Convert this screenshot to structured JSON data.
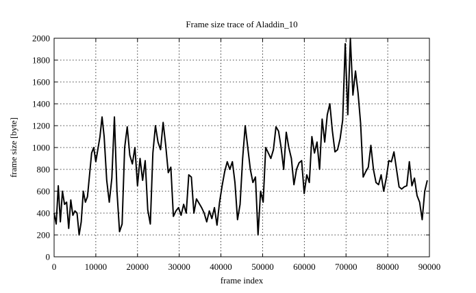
{
  "chart_data": {
    "type": "line",
    "title": "Frame size trace of Aladdin_10",
    "x_label": "frame index",
    "y_label": "frame size [byte]",
    "color": "#000000",
    "grid": true,
    "xlim": [
      0,
      90000
    ],
    "xticks": [
      0,
      10000,
      20000,
      30000,
      40000,
      50000,
      60000,
      70000,
      80000,
      90000
    ],
    "ylim": [
      0,
      2000
    ],
    "yticks": [
      0,
      200,
      400,
      600,
      800,
      1000,
      1200,
      1400,
      1600,
      1800,
      2000
    ],
    "x": [
      0,
      500,
      1000,
      1500,
      2000,
      2500,
      3000,
      3500,
      4000,
      4500,
      5000,
      5500,
      6000,
      6500,
      7000,
      7500,
      8000,
      9000,
      9500,
      10000,
      11000,
      11500,
      12000,
      12615,
      13230,
      13845,
      14460,
      15075,
      15690,
      16305,
      16920,
      17535,
      18150,
      18765,
      19380,
      19995,
      20610,
      21225,
      21840,
      22455,
      23070,
      23685,
      24300,
      24915,
      25530,
      26145,
      26760,
      27375,
      27990,
      28605,
      29220,
      29835,
      30450,
      31065,
      31680,
      32295,
      32910,
      33525,
      34140,
      34755,
      35370,
      35985,
      36600,
      37215,
      37830,
      38445,
      39060,
      39675,
      40290,
      40905,
      41520,
      42135,
      42750,
      43365,
      43980,
      44595,
      45210,
      45825,
      46440,
      47055,
      47670,
      48285,
      48900,
      49515,
      50130,
      50745,
      51360,
      51975,
      52590,
      53205,
      53820,
      54435,
      55050,
      55665,
      56280,
      56895,
      57510,
      58125,
      58740,
      59355,
      59970,
      60585,
      61200,
      61815,
      62430,
      63045,
      63660,
      64275,
      64890,
      65505,
      66120,
      66735,
      67350,
      67965,
      68580,
      69195,
      69810,
      70425,
      71040,
      71655,
      72270,
      72885,
      73500,
      74115,
      74730,
      75345,
      75960,
      76575,
      77190,
      77805,
      78420,
      79035,
      79650,
      80265,
      80880,
      81495,
      82110,
      82725,
      83340,
      83955,
      84570,
      85185,
      85800,
      86415,
      87030,
      87645,
      88260,
      88875,
      89490
    ],
    "values": [
      400,
      300,
      650,
      320,
      600,
      480,
      500,
      260,
      520,
      380,
      420,
      400,
      200,
      320,
      600,
      500,
      550,
      950,
      1000,
      870,
      1100,
      1280,
      1100,
      700,
      500,
      720,
      1280,
      600,
      230,
      300,
      1000,
      1190,
      930,
      850,
      1000,
      650,
      900,
      700,
      880,
      430,
      300,
      950,
      1200,
      1050,
      980,
      1230,
      1020,
      770,
      820,
      370,
      420,
      450,
      380,
      480,
      400,
      750,
      730,
      400,
      530,
      490,
      450,
      400,
      320,
      420,
      350,
      450,
      290,
      500,
      650,
      780,
      870,
      800,
      870,
      680,
      340,
      480,
      900,
      1200,
      1000,
      800,
      680,
      730,
      200,
      600,
      500,
      1000,
      950,
      900,
      980,
      1190,
      1150,
      1000,
      800,
      1140,
      1000,
      900,
      660,
      800,
      860,
      880,
      580,
      750,
      680,
      1100,
      950,
      1050,
      800,
      1260,
      1050,
      1300,
      1400,
      1150,
      960,
      980,
      1080,
      1250,
      1950,
      1300,
      2000,
      1480,
      1700,
      1500,
      1220,
      730,
      780,
      820,
      1020,
      800,
      680,
      660,
      750,
      600,
      720,
      880,
      870,
      960,
      800,
      640,
      620,
      640,
      650,
      870,
      650,
      720,
      560,
      500,
      340,
      600,
      700
    ]
  }
}
